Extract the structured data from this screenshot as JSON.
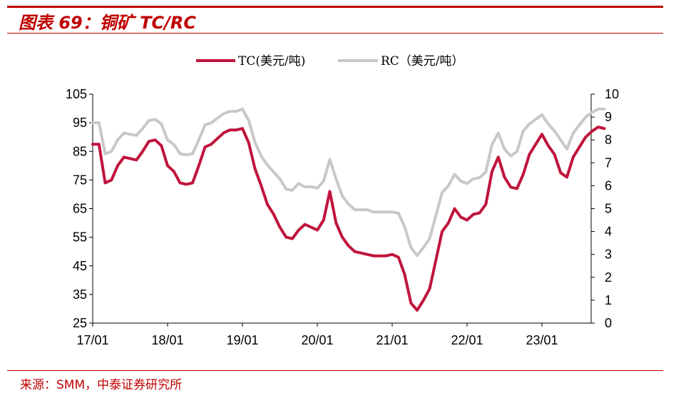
{
  "header": {
    "title": "图表 69：铜矿 TC/RC"
  },
  "footer": {
    "source": "来源：SMM，中泰证券研究所"
  },
  "colors": {
    "accent": "#c00000",
    "tc": "#c0143c",
    "rc": "#c8c8c8"
  },
  "chart_data": {
    "type": "line",
    "title": "",
    "xlabel": "",
    "ylabel": "",
    "x_ticks": [
      "17/01",
      "18/01",
      "19/01",
      "20/01",
      "21/01",
      "22/01",
      "23/01"
    ],
    "y_left_ticks": [
      "105",
      "95",
      "85",
      "75",
      "65",
      "55",
      "45",
      "35",
      "25"
    ],
    "y_right_ticks": [
      "10",
      "9",
      "8",
      "7",
      "6",
      "5",
      "4",
      "3",
      "2",
      "1",
      "0"
    ],
    "ylim_left": [
      25,
      105
    ],
    "ylim_right": [
      0,
      10
    ],
    "legend_position": "top-center",
    "series": [
      {
        "name": "TC(美元/吨)",
        "axis": "left",
        "color": "#c0143c",
        "values": [
          [
            "2017-01",
            87.5
          ],
          [
            "2017-02",
            87.5
          ],
          [
            "2017-03",
            74
          ],
          [
            "2017-04",
            75
          ],
          [
            "2017-05",
            80
          ],
          [
            "2017-06",
            83
          ],
          [
            "2017-07",
            82.5
          ],
          [
            "2017-08",
            82
          ],
          [
            "2017-09",
            85
          ],
          [
            "2017-10",
            88.5
          ],
          [
            "2017-11",
            89
          ],
          [
            "2017-12",
            87
          ],
          [
            "2018-01",
            80
          ],
          [
            "2018-02",
            78
          ],
          [
            "2018-03",
            74
          ],
          [
            "2018-04",
            73.5
          ],
          [
            "2018-05",
            74
          ],
          [
            "2018-06",
            80
          ],
          [
            "2018-07",
            86.5
          ],
          [
            "2018-08",
            87.5
          ],
          [
            "2018-09",
            89.5
          ],
          [
            "2018-10",
            91.5
          ],
          [
            "2018-11",
            92.5
          ],
          [
            "2018-12",
            92.5
          ],
          [
            "2019-01",
            93
          ],
          [
            "2019-02",
            88
          ],
          [
            "2019-03",
            79
          ],
          [
            "2019-04",
            73
          ],
          [
            "2019-05",
            66.5
          ],
          [
            "2019-06",
            63
          ],
          [
            "2019-07",
            58.5
          ],
          [
            "2019-08",
            55
          ],
          [
            "2019-09",
            54.5
          ],
          [
            "2019-10",
            57.5
          ],
          [
            "2019-11",
            59.5
          ],
          [
            "2019-12",
            58.5
          ],
          [
            "2020-01",
            57.5
          ],
          [
            "2020-02",
            61
          ],
          [
            "2020-03",
            71
          ],
          [
            "2020-04",
            60
          ],
          [
            "2020-05",
            55
          ],
          [
            "2020-06",
            52
          ],
          [
            "2020-07",
            50
          ],
          [
            "2020-08",
            49.5
          ],
          [
            "2020-09",
            49
          ],
          [
            "2020-10",
            48.5
          ],
          [
            "2020-11",
            48.5
          ],
          [
            "2020-12",
            48.5
          ],
          [
            "2021-01",
            49
          ],
          [
            "2021-02",
            48
          ],
          [
            "2021-03",
            42
          ],
          [
            "2021-04",
            32
          ],
          [
            "2021-05",
            29.5
          ],
          [
            "2021-06",
            33
          ],
          [
            "2021-07",
            37
          ],
          [
            "2021-08",
            47
          ],
          [
            "2021-09",
            57
          ],
          [
            "2021-10",
            60
          ],
          [
            "2021-11",
            65
          ],
          [
            "2021-12",
            62
          ],
          [
            "2022-01",
            61
          ],
          [
            "2022-02",
            63
          ],
          [
            "2022-03",
            63.5
          ],
          [
            "2022-04",
            66.5
          ],
          [
            "2022-05",
            78
          ],
          [
            "2022-06",
            83
          ],
          [
            "2022-07",
            76
          ],
          [
            "2022-08",
            72.5
          ],
          [
            "2022-09",
            72
          ],
          [
            "2022-10",
            77
          ],
          [
            "2022-11",
            84
          ],
          [
            "2022-12",
            87.5
          ],
          [
            "2023-01",
            91
          ],
          [
            "2023-02",
            87
          ],
          [
            "2023-03",
            84
          ],
          [
            "2023-04",
            77.5
          ],
          [
            "2023-05",
            76
          ],
          [
            "2023-06",
            83
          ],
          [
            "2023-07",
            86.5
          ],
          [
            "2023-08",
            90
          ],
          [
            "2023-09",
            92
          ],
          [
            "2023-10",
            93.5
          ],
          [
            "2023-11",
            93
          ]
        ]
      },
      {
        "name": "RC（美元/吨）",
        "axis": "right",
        "color": "#c8c8c8",
        "values": [
          [
            "2017-01",
            8.75
          ],
          [
            "2017-02",
            8.75
          ],
          [
            "2017-03",
            7.4
          ],
          [
            "2017-04",
            7.5
          ],
          [
            "2017-05",
            8
          ],
          [
            "2017-06",
            8.3
          ],
          [
            "2017-07",
            8.25
          ],
          [
            "2017-08",
            8.2
          ],
          [
            "2017-09",
            8.5
          ],
          [
            "2017-10",
            8.85
          ],
          [
            "2017-11",
            8.9
          ],
          [
            "2017-12",
            8.7
          ],
          [
            "2018-01",
            8
          ],
          [
            "2018-02",
            7.8
          ],
          [
            "2018-03",
            7.4
          ],
          [
            "2018-04",
            7.35
          ],
          [
            "2018-05",
            7.4
          ],
          [
            "2018-06",
            8
          ],
          [
            "2018-07",
            8.65
          ],
          [
            "2018-08",
            8.75
          ],
          [
            "2018-09",
            8.95
          ],
          [
            "2018-10",
            9.15
          ],
          [
            "2018-11",
            9.25
          ],
          [
            "2018-12",
            9.25
          ],
          [
            "2019-01",
            9.35
          ],
          [
            "2019-02",
            8.85
          ],
          [
            "2019-03",
            7.9
          ],
          [
            "2019-04",
            7.3
          ],
          [
            "2019-05",
            6.9
          ],
          [
            "2019-06",
            6.6
          ],
          [
            "2019-07",
            6.3
          ],
          [
            "2019-08",
            5.85
          ],
          [
            "2019-09",
            5.8
          ],
          [
            "2019-10",
            6.1
          ],
          [
            "2019-11",
            5.95
          ],
          [
            "2019-12",
            5.95
          ],
          [
            "2020-01",
            5.9
          ],
          [
            "2020-02",
            6.2
          ],
          [
            "2020-03",
            7.15
          ],
          [
            "2020-04",
            6.3
          ],
          [
            "2020-05",
            5.55
          ],
          [
            "2020-06",
            5.2
          ],
          [
            "2020-07",
            4.95
          ],
          [
            "2020-08",
            4.95
          ],
          [
            "2020-09",
            4.95
          ],
          [
            "2020-10",
            4.85
          ],
          [
            "2020-11",
            4.85
          ],
          [
            "2020-12",
            4.85
          ],
          [
            "2021-01",
            4.85
          ],
          [
            "2021-02",
            4.8
          ],
          [
            "2021-03",
            4.2
          ],
          [
            "2021-04",
            3.3
          ],
          [
            "2021-05",
            2.95
          ],
          [
            "2021-06",
            3.3
          ],
          [
            "2021-07",
            3.7
          ],
          [
            "2021-08",
            4.7
          ],
          [
            "2021-09",
            5.7
          ],
          [
            "2021-10",
            6
          ],
          [
            "2021-11",
            6.5
          ],
          [
            "2021-12",
            6.2
          ],
          [
            "2022-01",
            6.1
          ],
          [
            "2022-02",
            6.3
          ],
          [
            "2022-03",
            6.35
          ],
          [
            "2022-04",
            6.6
          ],
          [
            "2022-05",
            7.8
          ],
          [
            "2022-06",
            8.3
          ],
          [
            "2022-07",
            7.6
          ],
          [
            "2022-08",
            7.3
          ],
          [
            "2022-09",
            7.5
          ],
          [
            "2022-10",
            8.4
          ],
          [
            "2022-11",
            8.7
          ],
          [
            "2022-12",
            8.9
          ],
          [
            "2023-01",
            9.1
          ],
          [
            "2023-02",
            8.7
          ],
          [
            "2023-03",
            8.4
          ],
          [
            "2023-04",
            8
          ],
          [
            "2023-05",
            7.6
          ],
          [
            "2023-06",
            8.3
          ],
          [
            "2023-07",
            8.65
          ],
          [
            "2023-08",
            9
          ],
          [
            "2023-09",
            9.2
          ],
          [
            "2023-10",
            9.35
          ],
          [
            "2023-11",
            9.35
          ]
        ]
      }
    ]
  }
}
